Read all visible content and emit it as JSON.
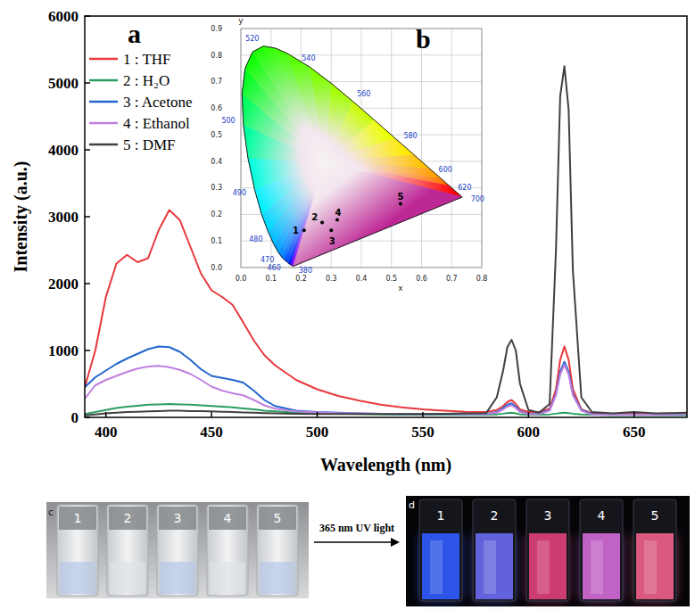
{
  "chart_data": [
    {
      "type": "line",
      "panel_label": "a",
      "xlabel": "Wavelength (nm)",
      "ylabel": "Intensity (a.u.)",
      "xlim": [
        390,
        675
      ],
      "ylim": [
        0,
        6000
      ],
      "xticks": [
        400,
        450,
        500,
        550,
        600,
        650
      ],
      "yticks": [
        0,
        1000,
        2000,
        3000,
        4000,
        5000,
        6000
      ],
      "grid": false,
      "legend": "upper left",
      "x": [
        390,
        395,
        400,
        405,
        410,
        415,
        420,
        425,
        430,
        435,
        440,
        445,
        450,
        455,
        460,
        465,
        470,
        475,
        480,
        490,
        500,
        510,
        520,
        530,
        540,
        550,
        560,
        570,
        580,
        585,
        588,
        590,
        592,
        594,
        596,
        600,
        605,
        610,
        613,
        615,
        617,
        619,
        621,
        625,
        630,
        640,
        650,
        660,
        675
      ],
      "series": [
        {
          "name": "1 : THF",
          "color": "#e8383d",
          "values": [
            450,
            1000,
            1800,
            2300,
            2430,
            2320,
            2380,
            2800,
            3100,
            2950,
            2550,
            2150,
            1900,
            1800,
            1680,
            1420,
            1150,
            930,
            780,
            560,
            420,
            320,
            250,
            190,
            150,
            120,
            100,
            85,
            80,
            110,
            170,
            230,
            260,
            200,
            120,
            80,
            80,
            130,
            420,
            860,
            1060,
            860,
            420,
            120,
            60,
            50,
            60,
            50,
            60
          ]
        },
        {
          "name": "2 : H₂O",
          "color": "#2a9d62",
          "values": [
            50,
            80,
            110,
            140,
            160,
            175,
            190,
            195,
            200,
            195,
            190,
            180,
            170,
            160,
            150,
            135,
            120,
            100,
            90,
            70,
            60,
            55,
            50,
            45,
            40,
            40,
            40,
            40,
            40,
            45,
            55,
            65,
            70,
            60,
            45,
            40,
            40,
            45,
            55,
            65,
            70,
            65,
            55,
            45,
            40,
            35,
            35,
            35,
            35
          ]
        },
        {
          "name": "3 : Acetone",
          "color": "#2266cc",
          "values": [
            450,
            600,
            700,
            800,
            880,
            950,
            1020,
            1060,
            1050,
            980,
            860,
            720,
            620,
            590,
            560,
            520,
            400,
            260,
            170,
            100,
            80,
            70,
            60,
            55,
            50,
            50,
            50,
            50,
            50,
            80,
            140,
            190,
            210,
            160,
            90,
            55,
            55,
            110,
            350,
            680,
            830,
            680,
            350,
            110,
            50,
            40,
            45,
            40,
            50
          ]
        },
        {
          "name": "4 : Ethanol",
          "color": "#bf80e0",
          "values": [
            280,
            480,
            560,
            620,
            680,
            730,
            760,
            770,
            750,
            710,
            650,
            560,
            460,
            400,
            360,
            330,
            260,
            180,
            130,
            90,
            75,
            65,
            60,
            55,
            50,
            50,
            50,
            50,
            50,
            70,
            120,
            160,
            180,
            140,
            80,
            50,
            50,
            100,
            330,
            640,
            790,
            640,
            330,
            100,
            45,
            40,
            45,
            40,
            50
          ]
        },
        {
          "name": "5 : DMF",
          "color": "#404040",
          "values": [
            30,
            45,
            60,
            70,
            80,
            85,
            90,
            95,
            100,
            100,
            95,
            92,
            90,
            85,
            80,
            75,
            70,
            65,
            60,
            55,
            50,
            50,
            50,
            50,
            50,
            50,
            55,
            60,
            65,
            300,
            700,
            1050,
            1160,
            1000,
            500,
            110,
            70,
            200,
            2500,
            4800,
            5250,
            4600,
            2200,
            300,
            80,
            60,
            80,
            60,
            70
          ]
        }
      ]
    },
    {
      "type": "scatter",
      "panel_label": "b",
      "xlabel": "x",
      "ylabel": "y",
      "xlim": [
        0,
        0.8
      ],
      "ylim": [
        0,
        0.9
      ],
      "xticks": [
        {
          "value": 0,
          "label": "0.0"
        },
        0.1,
        0.2,
        0.3,
        0.4,
        0.5,
        0.6,
        0.7,
        0.8
      ],
      "yticks": [
        {
          "value": 0,
          "label": "0.0"
        },
        0.1,
        0.2,
        0.3,
        0.4,
        0.5,
        0.6,
        0.7,
        0.8,
        0.9
      ],
      "grid": true,
      "color": "#000000",
      "x": [
        0.21,
        0.27,
        0.3,
        0.32,
        0.53
      ],
      "values": [
        0.14,
        0.17,
        0.14,
        0.18,
        0.24
      ],
      "point_labels": [
        "1",
        "2",
        "3",
        "4",
        "5"
      ],
      "locus": {
        "wavelength": [
          380,
          440,
          450,
          460,
          465,
          470,
          475,
          480,
          485,
          490,
          495,
          500,
          505,
          510,
          515,
          520,
          525,
          530,
          540,
          550,
          560,
          570,
          580,
          590,
          600,
          610,
          620,
          700
        ],
        "x": [
          0.1741,
          0.1644,
          0.1566,
          0.144,
          0.1355,
          0.1241,
          0.1096,
          0.0913,
          0.0687,
          0.0454,
          0.0235,
          0.0082,
          0.0039,
          0.0139,
          0.0389,
          0.0743,
          0.1142,
          0.1547,
          0.2296,
          0.3016,
          0.3731,
          0.4441,
          0.5125,
          0.5752,
          0.627,
          0.6658,
          0.6915,
          0.7347
        ],
        "y": [
          0.005,
          0.0109,
          0.0177,
          0.0297,
          0.0399,
          0.0578,
          0.0868,
          0.1327,
          0.2007,
          0.295,
          0.4127,
          0.5384,
          0.6548,
          0.7502,
          0.812,
          0.8338,
          0.8262,
          0.8059,
          0.7543,
          0.6923,
          0.6245,
          0.5547,
          0.4866,
          0.4242,
          0.3725,
          0.334,
          0.3083,
          0.2653
        ]
      },
      "locus_labels": [
        380,
        460,
        470,
        480,
        490,
        500,
        520,
        540,
        560,
        580,
        600,
        620,
        700
      ]
    }
  ],
  "photos": {
    "arrow_label": "365 nm UV light",
    "before": {
      "panel_label": "c",
      "samples": [
        "1",
        "2",
        "3",
        "4",
        "5"
      ]
    },
    "after": {
      "panel_label": "d",
      "samples": [
        "1",
        "2",
        "3",
        "4",
        "5"
      ],
      "colors": [
        "#2f5bff",
        "#6a6cf2",
        "#e0407a",
        "#d46ad8",
        "#f0608a"
      ]
    }
  }
}
